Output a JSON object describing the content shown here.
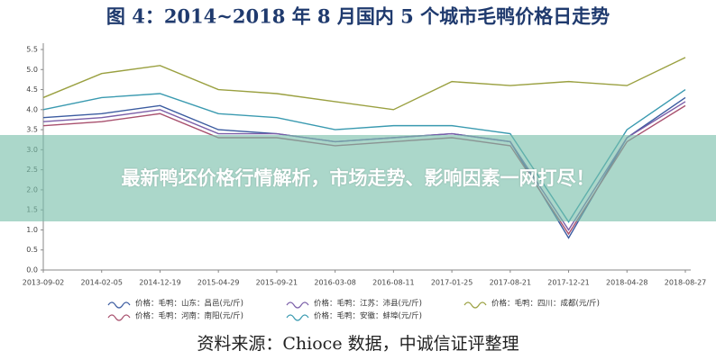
{
  "chart_data": {
    "type": "line",
    "title": "图 4：2014~2018 年 8 月国内 5 个城市毛鸭价格日走势",
    "categories": [
      "2013-09-02",
      "2014-02-05",
      "2014-12-19",
      "2015-04-29",
      "2015-09-21",
      "2016-03-08",
      "2016-08-11",
      "2017-01-25",
      "2017-08-21",
      "2017-12-21",
      "2018-04-28",
      "2018-08-27"
    ],
    "series": [
      {
        "name": "价格：毛鸭：山东：昌邑(元/斤)",
        "color": "#3b5ba0",
        "values": [
          3.8,
          3.9,
          4.1,
          3.5,
          3.4,
          3.2,
          3.3,
          3.4,
          3.2,
          0.8,
          3.3,
          4.3
        ]
      },
      {
        "name": "价格：毛鸭：河南：南阳(元/斤)",
        "color": "#a8506e",
        "values": [
          3.6,
          3.7,
          3.9,
          3.3,
          3.3,
          3.1,
          3.2,
          3.3,
          3.1,
          0.9,
          3.2,
          4.1
        ]
      },
      {
        "name": "价格：毛鸭：江苏：沛县(元/斤)",
        "color": "#7a5ea8",
        "values": [
          3.7,
          3.8,
          4.0,
          3.4,
          3.4,
          3.2,
          3.3,
          3.4,
          3.2,
          1.0,
          3.3,
          4.2
        ]
      },
      {
        "name": "价格：毛鸭：安徽：蚌埠(元/斤)",
        "color": "#3a9ab0",
        "values": [
          4.0,
          4.3,
          4.4,
          3.9,
          3.8,
          3.5,
          3.6,
          3.6,
          3.4,
          1.2,
          3.5,
          4.5
        ]
      },
      {
        "name": "价格：毛鸭：四川：成都(元/斤)",
        "color": "#9aa040",
        "values": [
          4.3,
          4.9,
          5.1,
          4.5,
          4.4,
          4.2,
          4.0,
          4.7,
          4.6,
          4.7,
          4.6,
          5.3
        ]
      }
    ],
    "ylim": [
      0,
      5.5
    ],
    "yticks": [
      {
        "value": 0,
        "label": "0.0"
      },
      0.5,
      {
        "value": 1,
        "label": "1.0"
      },
      1.5,
      {
        "value": 2,
        "label": "2.0"
      },
      2.5,
      {
        "value": 3,
        "label": "3.0"
      },
      3.5,
      {
        "value": 4,
        "label": "4.0"
      },
      4.5,
      {
        "value": 5,
        "label": "5.0"
      },
      5.5
    ],
    "source": "资料来源：Chioce 数据，中诚信证评整理",
    "banner": "最新鸭坯价格行情解析，市场走势、影响因素一网打尽！"
  }
}
